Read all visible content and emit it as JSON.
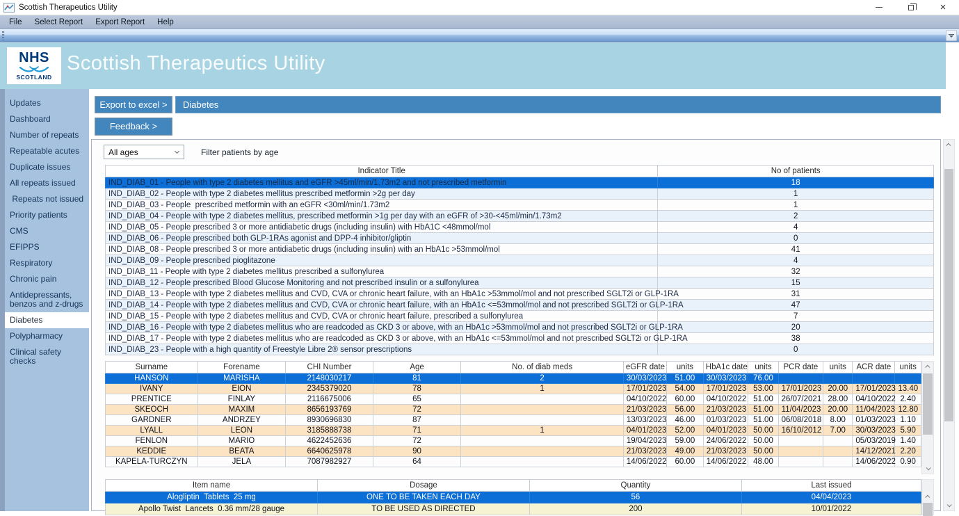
{
  "window": {
    "title": "Scottish Therapeutics Utility"
  },
  "menu": {
    "items": [
      "File",
      "Select Report",
      "Export Report",
      "Help"
    ]
  },
  "banner": {
    "logo_line1": "NHS",
    "logo_line2": "SCOTLAND",
    "title": "Scottish Therapeutics Utility"
  },
  "sidebar": {
    "items": [
      {
        "label": "Updates"
      },
      {
        "label": "Dashboard"
      },
      {
        "label": "Number of repeats"
      },
      {
        "label": "Repeatable acutes"
      },
      {
        "label": "Duplicate issues"
      },
      {
        "label": "All repeats issued"
      },
      {
        "label": " Repeats not issued"
      },
      {
        "label": "Priority patients"
      },
      {
        "label": "CMS"
      },
      {
        "label": "EFIPPS"
      },
      {
        "label": "Respiratory"
      },
      {
        "label": "Chronic pain"
      },
      {
        "label": "Antidepressants,\nbenzos and z-drugs"
      },
      {
        "label": "Diabetes",
        "selected": true
      },
      {
        "label": "Polypharmacy"
      },
      {
        "label": "Clinical safety\nchecks"
      }
    ]
  },
  "actions": {
    "export_label": "Export to excel >",
    "feedback_label": "Feedback >"
  },
  "report": {
    "title": "Diabetes"
  },
  "filter": {
    "value": "All ages",
    "label": "Filter patients by age"
  },
  "indicators": {
    "headers": [
      "Indicator Title",
      "No of patients"
    ],
    "selected_row": 0,
    "rows": [
      [
        "IND_DIAB_01 - People with type 2 diabetes mellitus and eGFR >45ml/min/1.73m2 and not prescribed metformin",
        "18"
      ],
      [
        "IND_DIAB_02 - People with type 2 diabetes mellitus prescribed metformin >2g per day",
        "1"
      ],
      [
        "IND_DIAB_03 - People  prescribed metformin with an eGFR <30ml/min/1.73m2",
        "1"
      ],
      [
        "IND_DIAB_04 - People with type 2 diabetes mellitus, prescribed metformin >1g per day with an eGFR of >30-<45ml/min/1.73m2",
        "2"
      ],
      [
        "IND_DIAB_05 - People prescribed 3 or more antidiabetic drugs (including insulin) with HbA1C <48mmol/mol",
        "4"
      ],
      [
        "IND_DIAB_06 - People prescribed both GLP-1RAs agonist and DPP-4 inhibitor/gliptin",
        "0"
      ],
      [
        "IND_DIAB_08 - People prescribed 3 or more antidiabetic drugs (including insulin) with an HbA1c >53mmol/mol",
        "41"
      ],
      [
        "IND_DIAB_09 - People prescribed pioglitazone",
        "4"
      ],
      [
        "IND_DIAB_11 - People with type 2 diabetes mellitus prescribed a sulfonylurea",
        "32"
      ],
      [
        "IND_DIAB_12 - People prescribed Blood Glucose Monitoring and not prescribed insulin or a sulfonylurea",
        "15"
      ],
      [
        "IND_DIAB_13 - People with type 2 diabetes mellitus and CVD, CVA or chronic heart failure, with an HbA1c >53mmol/mol and not prescribed SGLT2i or GLP-1RA",
        "31"
      ],
      [
        "IND_DIAB_14 - People with type 2 diabetes mellitus and CVD, CVA or chronic heart failure, with an HbA1c <=53mmol/mol and not prescribed SGLT2i or GLP-1RA",
        "47"
      ],
      [
        "IND_DIAB_15 - People with type 2 diabetes mellitus and CVD, CVA or chronic heart failure, prescribed a sulfonylurea",
        "7"
      ],
      [
        "IND_DIAB_16 - People with type 2 diabetes mellitus who are readcoded as CKD 3 or above, with an HbA1c >53mmol/mol and not prescribed SGLT2i or GLP-1RA",
        "20"
      ],
      [
        "IND_DIAB_17 - People with type 2 diabetes mellitus who are readcoded as CKD 3 or above, with an HbA1c <=53mmol/mol and not prescribed SGLT2i or GLP-1RA",
        "38"
      ],
      [
        "IND_DIAB_23 - People with a high quantity of Freestyle Libre 2® sensor prescriptions",
        "0"
      ]
    ]
  },
  "patients": {
    "headers": [
      "Surname",
      "Forename",
      "CHI Number",
      "Age",
      "No. of diab meds",
      "eGFR date",
      "units",
      "HbA1c date",
      "units",
      "PCR date",
      "units",
      "ACR date",
      "units"
    ],
    "selected_row": 0,
    "rows": [
      [
        "HANSON",
        "MARISHA",
        "2148030217",
        "81",
        "2",
        "30/03/2023",
        "51.00",
        "30/03/2023",
        "76.00",
        "",
        "",
        "",
        ""
      ],
      [
        "IVANY",
        "EION",
        "2345379020",
        "78",
        "1",
        "17/01/2023",
        "54.00",
        "17/01/2023",
        "53.00",
        "17/01/2023",
        "20.00",
        "17/01/2023",
        "13.40"
      ],
      [
        "PRENTICE",
        "FINLAY",
        "2116675006",
        "65",
        "",
        "04/10/2022",
        "60.00",
        "04/10/2022",
        "51.00",
        "26/07/2021",
        "28.00",
        "04/10/2022",
        "2.40"
      ],
      [
        "SKEOCH",
        "MAXIM",
        "8656193769",
        "72",
        "",
        "21/03/2023",
        "56.00",
        "21/03/2023",
        "51.00",
        "11/04/2023",
        "20.00",
        "11/04/2023",
        "12.80"
      ],
      [
        "GARDNER",
        "ANDRZEY",
        "8930696830",
        "87",
        "",
        "13/03/2023",
        "46.00",
        "01/03/2023",
        "51.00",
        "06/08/2018",
        "8.00",
        "01/03/2023",
        "1.10"
      ],
      [
        "LYALL",
        "LEON",
        "3185888738",
        "71",
        "1",
        "04/01/2023",
        "52.00",
        "04/01/2023",
        "50.00",
        "16/10/2012",
        "7.00",
        "30/03/2023",
        "5.90"
      ],
      [
        "FENLON",
        "MARIO",
        "4622452636",
        "72",
        "",
        "19/04/2023",
        "59.00",
        "24/06/2022",
        "50.00",
        "",
        "",
        "05/03/2019",
        "1.40"
      ],
      [
        "KEDDIE",
        "BEATA",
        "6640625978",
        "90",
        "",
        "21/03/2023",
        "49.00",
        "21/03/2023",
        "50.00",
        "",
        "",
        "14/12/2021",
        "2.20"
      ],
      [
        "KAPELA-TURCZYN",
        "JELA",
        "7087982927",
        "64",
        "",
        "14/06/2022",
        "60.00",
        "14/06/2022",
        "48.00",
        "",
        "",
        "14/06/2022",
        "0.90"
      ]
    ]
  },
  "items": {
    "headers": [
      "Item name",
      "Dosage",
      "Quantity",
      "Last issued"
    ],
    "selected_row": 0,
    "rows": [
      [
        "Alogliptin  Tablets  25 mg",
        "ONE TO BE TAKEN EACH DAY",
        "56",
        "04/04/2023"
      ],
      [
        "Apollo Twist  Lancets  0.36 mm/28 gauge",
        "TO BE USED AS DIRECTED",
        "200",
        "10/01/2022"
      ]
    ]
  },
  "colors": {
    "accent_steel_blue": "#4286bd",
    "selection_blue": "#0b6fd7",
    "banner_blue": "#a8d3e2",
    "sidebar_blue": "#a7c2de",
    "alt_row_blue": "#e9f2fb",
    "alt_row_tan": "#fce4c3",
    "alt_row_yellow": "#f6f3d3",
    "nhs_navy": "#003a7a"
  }
}
